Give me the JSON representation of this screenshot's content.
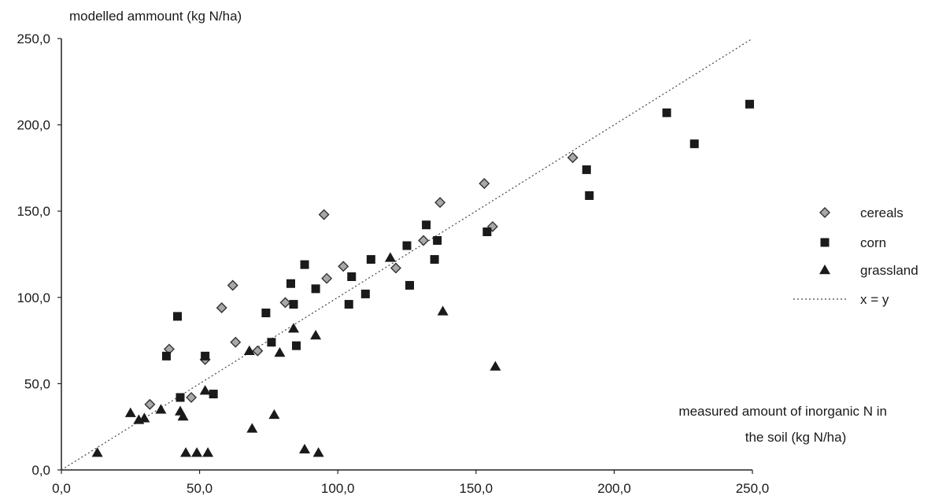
{
  "chart_data": {
    "type": "scatter",
    "title": "",
    "ylabel": "modelled ammount (kg N/ha)",
    "xlabel_lines": [
      "measured amount of inorganic N in",
      "the soil (kg N/ha)"
    ],
    "xlim": [
      0,
      250
    ],
    "ylim": [
      0,
      250
    ],
    "x_ticks": [
      0,
      50,
      100,
      150,
      200,
      250
    ],
    "y_ticks": [
      0,
      50,
      100,
      150,
      200,
      250
    ],
    "x_tick_labels": [
      "0,0",
      "50,0",
      "100,0",
      "150,0",
      "200,0",
      "250,0"
    ],
    "y_tick_labels": [
      "0,0",
      "50,0",
      "100,0",
      "150,0",
      "200,0",
      "250,0"
    ],
    "grid": false,
    "legend_position": "right",
    "series": [
      {
        "name": "cereals",
        "marker": "diamond",
        "color": "#8a8a8a",
        "points": [
          [
            32,
            38
          ],
          [
            39,
            70
          ],
          [
            47,
            42
          ],
          [
            52,
            64
          ],
          [
            58,
            94
          ],
          [
            62,
            107
          ],
          [
            63,
            74
          ],
          [
            71,
            69
          ],
          [
            81,
            97
          ],
          [
            95,
            148
          ],
          [
            96,
            111
          ],
          [
            102,
            118
          ],
          [
            121,
            117
          ],
          [
            131,
            133
          ],
          [
            137,
            155
          ],
          [
            153,
            166
          ],
          [
            156,
            141
          ],
          [
            185,
            181
          ]
        ]
      },
      {
        "name": "corn",
        "marker": "square",
        "color": "#1a1a1a",
        "points": [
          [
            38,
            66
          ],
          [
            42,
            89
          ],
          [
            43,
            42
          ],
          [
            52,
            66
          ],
          [
            55,
            44
          ],
          [
            74,
            91
          ],
          [
            76,
            74
          ],
          [
            83,
            108
          ],
          [
            84,
            96
          ],
          [
            85,
            72
          ],
          [
            88,
            119
          ],
          [
            92,
            105
          ],
          [
            104,
            96
          ],
          [
            105,
            112
          ],
          [
            110,
            102
          ],
          [
            112,
            122
          ],
          [
            125,
            130
          ],
          [
            126,
            107
          ],
          [
            132,
            142
          ],
          [
            135,
            122
          ],
          [
            136,
            133
          ],
          [
            154,
            138
          ],
          [
            190,
            174
          ],
          [
            191,
            159
          ],
          [
            219,
            207
          ],
          [
            229,
            189
          ],
          [
            249,
            212
          ]
        ]
      },
      {
        "name": "grassland",
        "marker": "triangle",
        "color": "#1a1a1a",
        "points": [
          [
            13,
            10
          ],
          [
            25,
            33
          ],
          [
            28,
            29
          ],
          [
            30,
            30
          ],
          [
            36,
            35
          ],
          [
            43,
            34
          ],
          [
            44,
            31
          ],
          [
            45,
            10
          ],
          [
            49,
            10
          ],
          [
            52,
            46
          ],
          [
            53,
            10
          ],
          [
            68,
            69
          ],
          [
            69,
            24
          ],
          [
            77,
            32
          ],
          [
            79,
            68
          ],
          [
            84,
            82
          ],
          [
            88,
            12
          ],
          [
            92,
            78
          ],
          [
            93,
            10
          ],
          [
            119,
            123
          ],
          [
            138,
            92
          ],
          [
            157,
            60
          ]
        ]
      },
      {
        "name": "x = y",
        "type": "line",
        "style": "dotted",
        "color": "#444444",
        "points": [
          [
            0,
            0
          ],
          [
            250,
            250
          ]
        ]
      }
    ]
  }
}
